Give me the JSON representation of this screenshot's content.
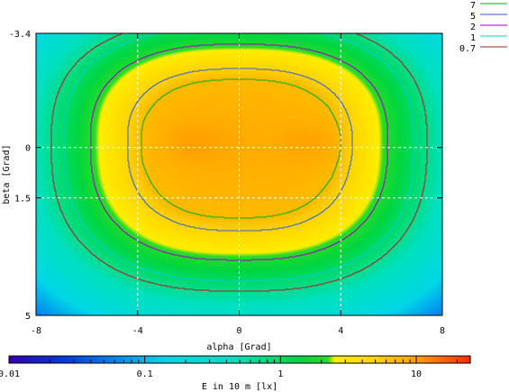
{
  "chart_data": {
    "type": "heatmap",
    "xlabel": "alpha [Grad]",
    "ylabel": "beta [Grad]",
    "colorbar_label": "E in 10 m [lx]",
    "xlim": [
      -8,
      8
    ],
    "ylim": [
      -3.4,
      5
    ],
    "x_ticks": [
      {
        "value": -8,
        "label": "-8"
      },
      {
        "value": -4,
        "label": "-4"
      },
      {
        "value": 0,
        "label": "0"
      },
      {
        "value": 4,
        "label": "4"
      },
      {
        "value": 8,
        "label": "8"
      }
    ],
    "y_ticks": [
      {
        "value": -3.4,
        "label": "-3.4"
      },
      {
        "value": 0,
        "label": "0"
      },
      {
        "value": 1.5,
        "label": "1.5"
      },
      {
        "value": 5,
        "label": "5"
      }
    ],
    "grid": true,
    "colorbar_scale": "log",
    "colorbar_range": [
      0.01,
      25
    ],
    "colorbar_ticks": [
      {
        "value": 0.01,
        "label": "0.01"
      },
      {
        "value": 0.1,
        "label": "0.1"
      },
      {
        "value": 1,
        "label": "1"
      },
      {
        "value": 10,
        "label": "10"
      }
    ],
    "legend_placement": "top-right",
    "contour_levels": [
      {
        "name": "7",
        "value": 7,
        "color": "#00b000"
      },
      {
        "name": "5",
        "value": 5,
        "color": "#3060d0"
      },
      {
        "name": "2",
        "value": 2,
        "color": "#a000c0"
      },
      {
        "name": "1",
        "value": 1,
        "color": "#00d0d0"
      },
      {
        "name": "0.7",
        "value": 0.7,
        "color": "#b02020"
      }
    ],
    "field": {
      "model": "two-lobe elliptical illuminance",
      "peak_value": 10,
      "lobe_centers_alpha": [
        -1.9,
        2.9
      ],
      "lobe_center_beta": -0.15
    }
  }
}
